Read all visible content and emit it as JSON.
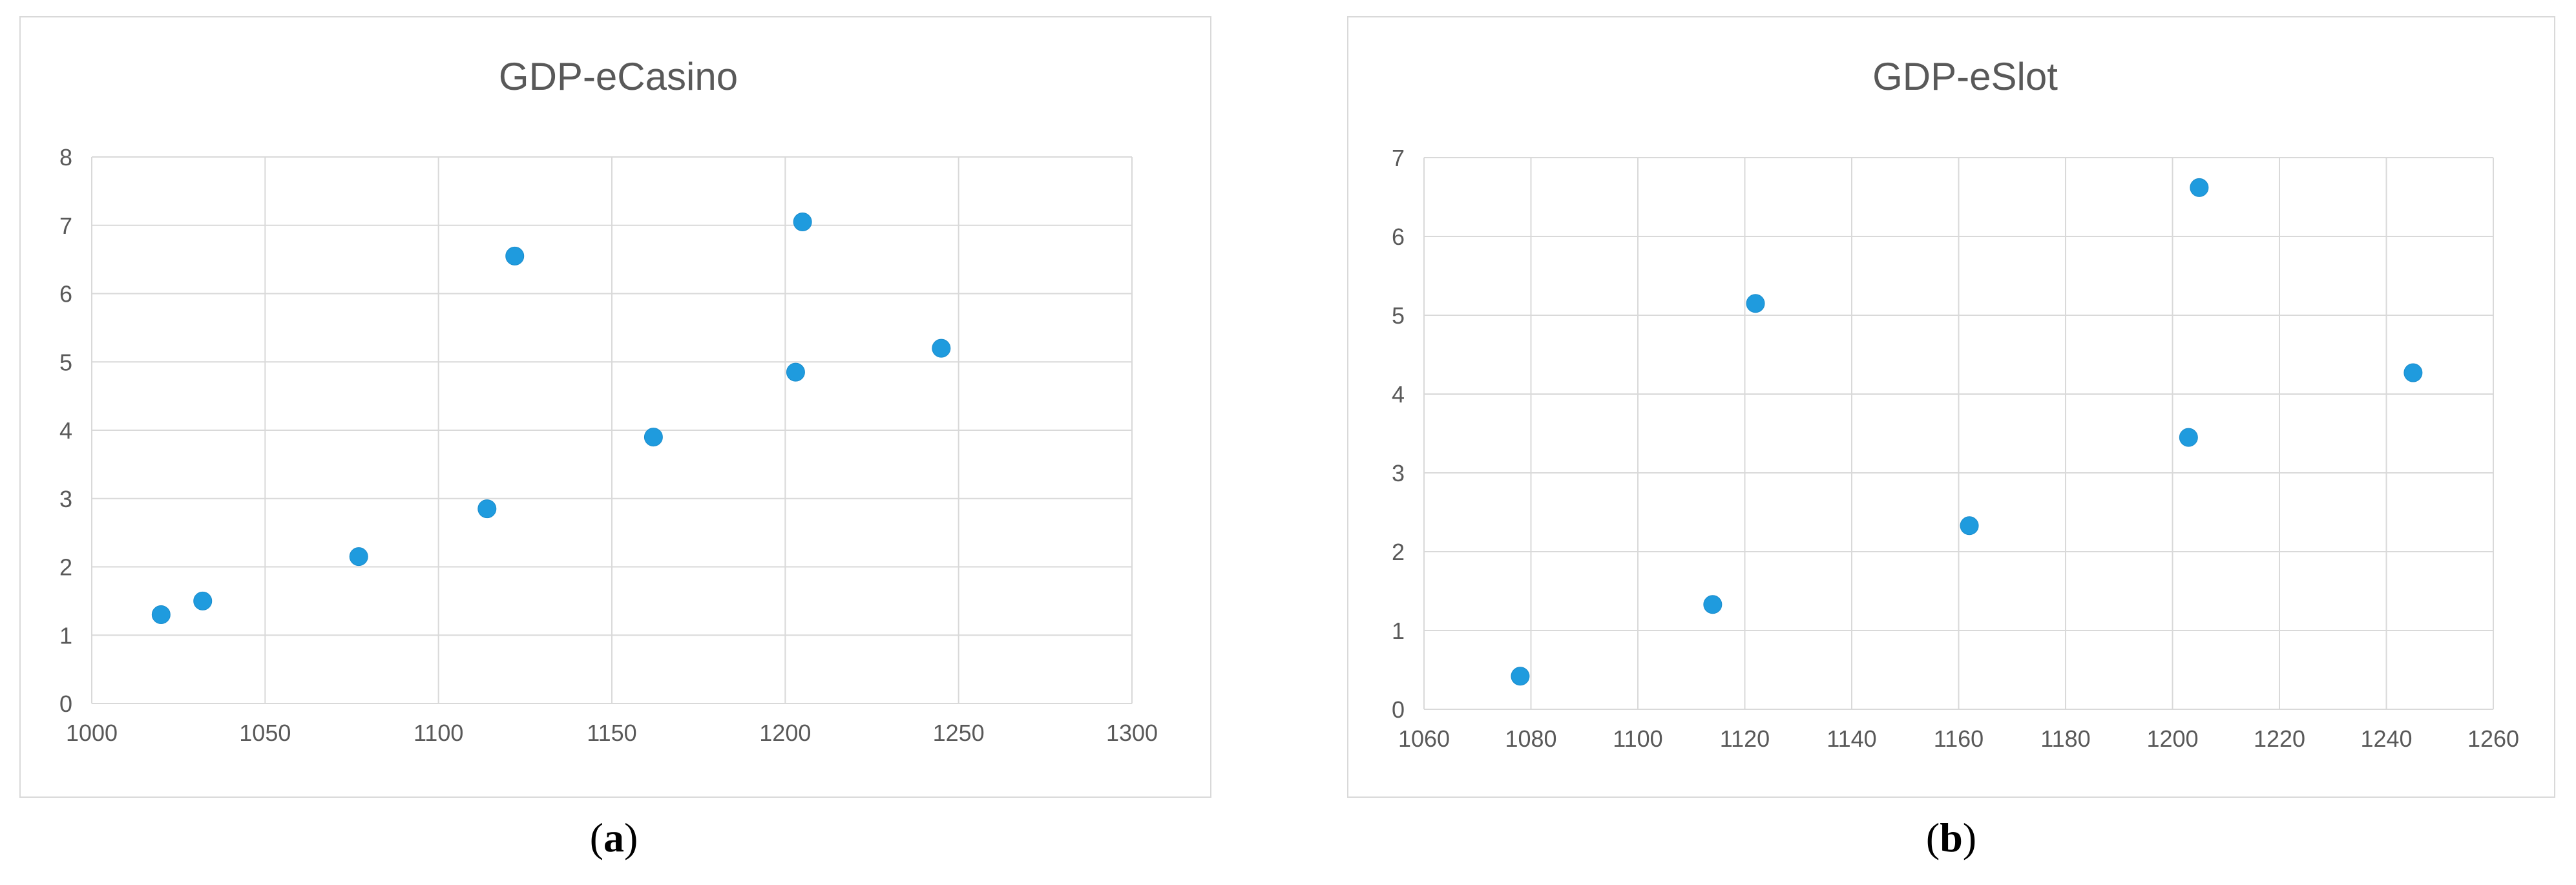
{
  "chart_data": [
    {
      "type": "scatter",
      "title": "GDP-eCasino",
      "caption": "a",
      "xlabel": "",
      "ylabel": "",
      "xlim": [
        1000,
        1300
      ],
      "ylim": [
        0,
        8
      ],
      "xticks": [
        1000,
        1050,
        1100,
        1150,
        1200,
        1250,
        1300
      ],
      "yticks": [
        0,
        1,
        2,
        3,
        4,
        5,
        6,
        7,
        8
      ],
      "grid": true,
      "marker_color": "#1f9bde",
      "points": [
        {
          "x": 1020,
          "y": 1.3
        },
        {
          "x": 1032,
          "y": 1.5
        },
        {
          "x": 1077,
          "y": 2.15
        },
        {
          "x": 1114,
          "y": 2.85
        },
        {
          "x": 1122,
          "y": 6.55
        },
        {
          "x": 1162,
          "y": 3.9
        },
        {
          "x": 1203,
          "y": 4.85
        },
        {
          "x": 1205,
          "y": 7.05
        },
        {
          "x": 1245,
          "y": 5.2
        }
      ]
    },
    {
      "type": "scatter",
      "title": "GDP-eSlot",
      "caption": "b",
      "xlabel": "",
      "ylabel": "",
      "xlim": [
        1060,
        1260
      ],
      "ylim": [
        0,
        7
      ],
      "xticks": [
        1060,
        1080,
        1100,
        1120,
        1140,
        1160,
        1180,
        1200,
        1220,
        1240,
        1260
      ],
      "yticks": [
        0,
        1,
        2,
        3,
        4,
        5,
        6,
        7
      ],
      "grid": true,
      "marker_color": "#1f9bde",
      "points": [
        {
          "x": 1078,
          "y": 0.42
        },
        {
          "x": 1114,
          "y": 1.33
        },
        {
          "x": 1122,
          "y": 5.15
        },
        {
          "x": 1162,
          "y": 2.33
        },
        {
          "x": 1203,
          "y": 3.45
        },
        {
          "x": 1205,
          "y": 6.62
        },
        {
          "x": 1245,
          "y": 4.27
        }
      ]
    }
  ]
}
